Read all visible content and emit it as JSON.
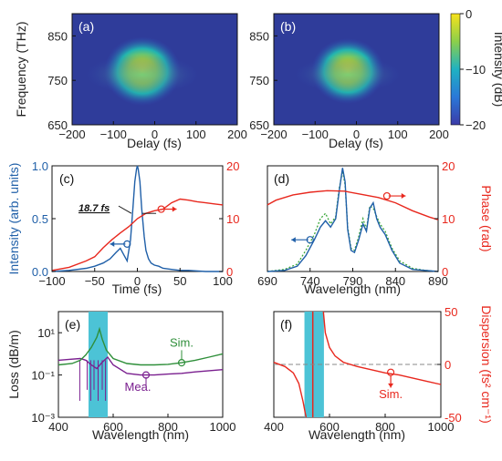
{
  "chart_data": [
    {
      "type": "heatmap",
      "panel_label": "(a)",
      "xlabel": "Delay (fs)",
      "ylabel": "Frequency (THz)",
      "xlim": [
        -200,
        200
      ],
      "ylim": [
        650,
        900
      ],
      "xticks": [
        "-200",
        "-100",
        "0",
        "100",
        "200"
      ],
      "yticks": [
        "650",
        "750",
        "850"
      ],
      "colorbar": {
        "label": "Intensity (dB)",
        "ticks": [
          "0",
          "−10",
          "−20"
        ],
        "range": [
          -20,
          0
        ]
      }
    },
    {
      "type": "heatmap",
      "panel_label": "(b)",
      "xlabel": "Delay (fs)",
      "ylabel": "",
      "xlim": [
        -200,
        200
      ],
      "ylim": [
        650,
        900
      ],
      "xticks": [
        "-200",
        "-100",
        "0",
        "100",
        "200"
      ],
      "yticks": [
        "650",
        "750",
        "850"
      ]
    },
    {
      "type": "line",
      "panel_label": "(c)",
      "xlabel": "Time (fs)",
      "ylabel": "Intensity (arb. units)",
      "y2label": "",
      "xlim": [
        -100,
        100
      ],
      "ylim": [
        0,
        1.0
      ],
      "y2lim": [
        0,
        20
      ],
      "xticks": [
        "-100",
        "-50",
        "0",
        "50",
        "100"
      ],
      "yticks": [
        "0.0",
        "0.5",
        "1.0"
      ],
      "y2ticks": [
        "0",
        "10",
        "20"
      ],
      "annotation": "18.7 fs",
      "series": [
        {
          "color": "#1f5fa8",
          "axis": "left",
          "x": [
            -100,
            -80,
            -60,
            -50,
            -40,
            -32,
            -25,
            -20,
            -16,
            -12,
            -8,
            -5,
            -3,
            -1,
            0,
            1,
            3,
            5,
            8,
            10,
            13,
            16,
            20,
            25,
            30,
            40,
            50,
            60,
            80,
            100
          ],
          "y": [
            0.0,
            0.01,
            0.03,
            0.05,
            0.08,
            0.12,
            0.18,
            0.22,
            0.16,
            0.1,
            0.3,
            0.62,
            0.85,
            0.97,
            1.0,
            0.97,
            0.85,
            0.6,
            0.33,
            0.2,
            0.12,
            0.08,
            0.06,
            0.05,
            0.03,
            0.02,
            0.01,
            0.01,
            0.0,
            0.0
          ]
        },
        {
          "color": "#e8281e",
          "axis": "right",
          "x": [
            -100,
            -80,
            -60,
            -50,
            -40,
            -30,
            -20,
            -10,
            0,
            10,
            20,
            30,
            40,
            50,
            60,
            70,
            80,
            90,
            100
          ],
          "y": [
            0.2,
            0.8,
            2.0,
            2.8,
            4.5,
            6.0,
            7.3,
            8.5,
            10.0,
            11.0,
            11.5,
            11.8,
            13.0,
            13.7,
            13.5,
            13.2,
            13.0,
            12.8,
            12.6
          ]
        }
      ]
    },
    {
      "type": "line",
      "panel_label": "(d)",
      "xlabel": "Wavelength (nm)",
      "ylabel": "",
      "y2label": "Phase (rad)",
      "xlim": [
        690,
        890
      ],
      "ylim": [
        0,
        1.0
      ],
      "y2lim": [
        0,
        20
      ],
      "xticks": [
        "690",
        "740",
        "790",
        "840",
        "890"
      ],
      "y2ticks": [
        "0",
        "10",
        "20"
      ],
      "series": [
        {
          "color": "#1f5fa8",
          "axis": "left",
          "x": [
            690,
            710,
            725,
            735,
            745,
            752,
            758,
            764,
            770,
            774,
            778,
            781,
            784,
            788,
            792,
            797,
            802,
            806,
            810,
            814,
            818,
            822,
            828,
            836,
            845,
            860,
            875,
            890
          ],
          "y": [
            0.0,
            0.01,
            0.05,
            0.15,
            0.3,
            0.42,
            0.48,
            0.42,
            0.5,
            0.75,
            0.98,
            0.85,
            0.4,
            0.2,
            0.18,
            0.3,
            0.45,
            0.38,
            0.6,
            0.65,
            0.5,
            0.42,
            0.35,
            0.2,
            0.08,
            0.02,
            0.01,
            0.0
          ]
        },
        {
          "color": "#3aa63a",
          "axis": "left",
          "style": "dotted",
          "x": [
            690,
            710,
            725,
            735,
            745,
            752,
            758,
            764,
            770,
            774,
            778,
            781,
            784,
            788,
            792,
            797,
            802,
            806,
            810,
            814,
            818,
            822,
            828,
            836,
            845,
            860,
            875,
            890
          ],
          "y": [
            0.0,
            0.02,
            0.07,
            0.2,
            0.35,
            0.5,
            0.55,
            0.45,
            0.52,
            0.78,
            0.95,
            0.82,
            0.42,
            0.22,
            0.2,
            0.33,
            0.5,
            0.4,
            0.62,
            0.6,
            0.52,
            0.45,
            0.38,
            0.22,
            0.1,
            0.03,
            0.01,
            0.0
          ]
        },
        {
          "color": "#e8281e",
          "axis": "right",
          "x": [
            690,
            700,
            720,
            740,
            760,
            780,
            800,
            820,
            840,
            860,
            880,
            890
          ],
          "y": [
            12.6,
            13.5,
            14.5,
            15.0,
            15.3,
            15.2,
            14.6,
            14.0,
            13.0,
            11.5,
            10.3,
            9.8
          ]
        }
      ]
    },
    {
      "type": "line",
      "panel_label": "(e)",
      "xlabel": "Wavelength (nm)",
      "ylabel": "Loss (dB/m)",
      "xlim": [
        400,
        1000
      ],
      "ylim": [
        0.001,
        100
      ],
      "yscale": "log",
      "xticks": [
        "400",
        "600",
        "800",
        "1000"
      ],
      "yticks_display": [
        "10⁻³",
        "10⁻¹",
        "10¹"
      ],
      "shaded_band": [
        510,
        580
      ],
      "series": [
        {
          "name": "Sim.",
          "color": "#2f8f3a",
          "x": [
            400,
            450,
            480,
            500,
            520,
            540,
            550,
            560,
            575,
            600,
            650,
            700,
            750,
            800,
            850,
            900,
            950,
            1000
          ],
          "y": [
            0.3,
            0.35,
            0.5,
            0.9,
            2.0,
            6.0,
            15.0,
            5.0,
            1.5,
            0.6,
            0.35,
            0.3,
            0.3,
            0.32,
            0.38,
            0.5,
            0.7,
            1.0
          ]
        },
        {
          "name": "Mea.",
          "color": "#7a1f8f",
          "x": [
            400,
            440,
            480,
            500,
            520,
            540,
            560,
            580,
            600,
            650,
            700,
            750,
            800,
            850,
            900,
            950,
            1000
          ],
          "y": [
            0.5,
            0.55,
            0.6,
            0.5,
            0.3,
            0.2,
            0.4,
            0.7,
            0.3,
            0.12,
            0.1,
            0.1,
            0.11,
            0.12,
            0.14,
            0.16,
            0.18
          ]
        }
      ]
    },
    {
      "type": "line",
      "panel_label": "(f)",
      "xlabel": "Wavelength (nm)",
      "ylabel": "",
      "y2label": "Dispersion (fs² cm⁻¹)",
      "xlim": [
        400,
        1000
      ],
      "ylim": [
        -50,
        50
      ],
      "xticks": [
        "400",
        "600",
        "800",
        "1000"
      ],
      "y2ticks": [
        "-50",
        "0",
        "50"
      ],
      "shaded_band": [
        510,
        580
      ],
      "marker_line_x": 540,
      "series": [
        {
          "name": "Sim.",
          "color": "#e8281e",
          "x": [
            400,
            440,
            470,
            490,
            505,
            512,
            516
          ],
          "y": [
            2,
            -2,
            -8,
            -18,
            -35,
            -45,
            -50
          ]
        },
        {
          "name": "Sim.",
          "color": "#e8281e",
          "x": [
            578,
            585,
            600,
            620,
            650,
            700,
            750,
            800,
            850,
            900,
            950,
            1000
          ],
          "y": [
            50,
            30,
            16,
            8,
            2,
            -2,
            -5,
            -8,
            -10,
            -13,
            -16,
            -19
          ]
        }
      ]
    }
  ]
}
